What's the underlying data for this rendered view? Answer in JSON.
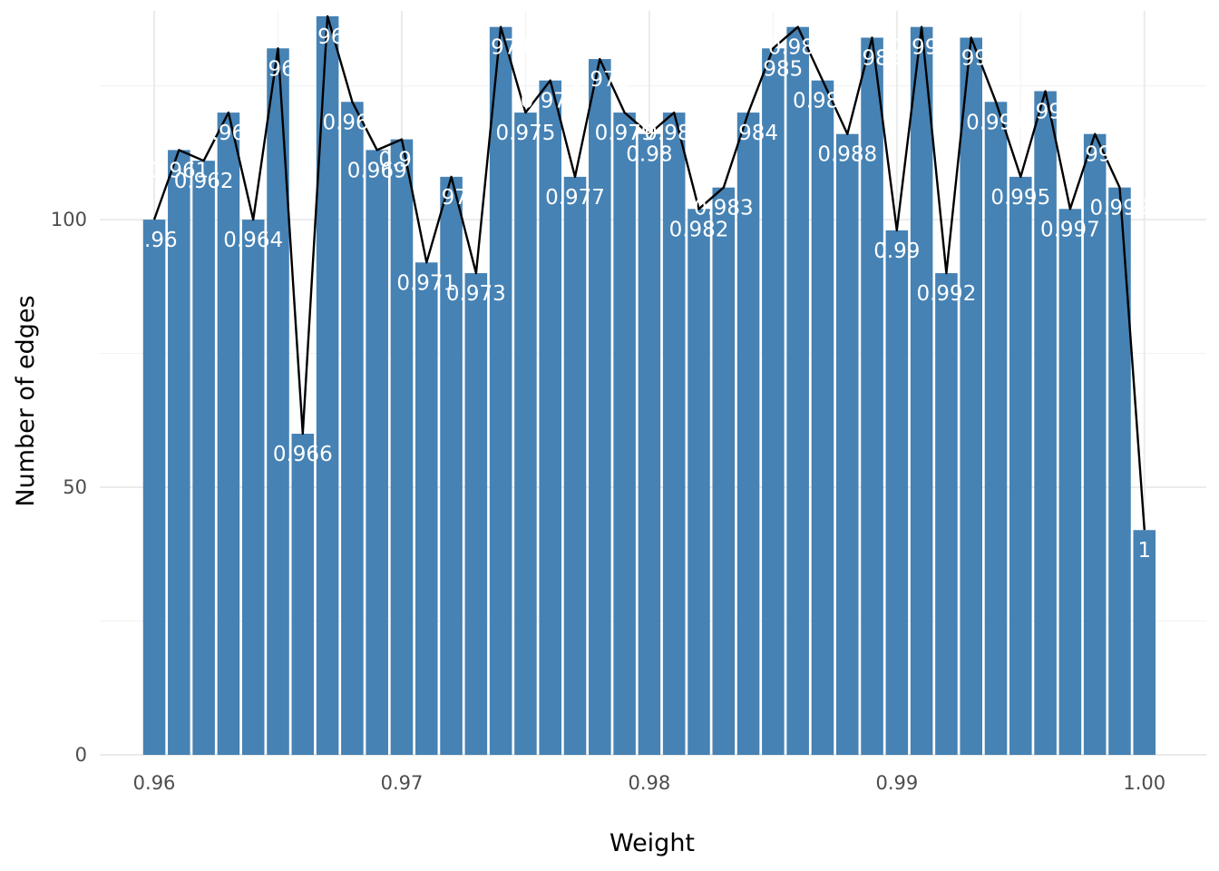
{
  "chart_data": {
    "type": "bar",
    "title": "",
    "xlabel": "Weight",
    "ylabel": "Number of edges",
    "xlim": [
      0.9578,
      1.0025
    ],
    "ylim": [
      0,
      139
    ],
    "x_ticks": [
      0.96,
      0.97,
      0.98,
      0.99,
      1.0
    ],
    "x_tick_labels": [
      "0.96",
      "0.97",
      "0.98",
      "0.99",
      "1.00"
    ],
    "y_ticks": [
      0,
      50,
      100
    ],
    "y_tick_labels": [
      "0",
      "50",
      "100"
    ],
    "x": [
      0.96,
      0.961,
      0.962,
      0.963,
      0.964,
      0.965,
      0.966,
      0.967,
      0.968,
      0.969,
      0.97,
      0.971,
      0.972,
      0.973,
      0.974,
      0.975,
      0.976,
      0.977,
      0.978,
      0.979,
      0.98,
      0.981,
      0.982,
      0.983,
      0.984,
      0.985,
      0.986,
      0.987,
      0.988,
      0.989,
      0.99,
      0.991,
      0.992,
      0.993,
      0.994,
      0.995,
      0.996,
      0.997,
      0.998,
      0.999,
      1.0
    ],
    "values": [
      100,
      113,
      111,
      120,
      100,
      132,
      60,
      138,
      122,
      113,
      115,
      92,
      108,
      90,
      136,
      120,
      126,
      108,
      130,
      120,
      116,
      120,
      102,
      106,
      120,
      132,
      136,
      126,
      116,
      134,
      98,
      136,
      90,
      134,
      122,
      108,
      124,
      102,
      116,
      106,
      42
    ],
    "bar_labels": [
      "0.96",
      "0.961",
      "0.962",
      "0.963",
      "0.964",
      "0.965",
      "0.966",
      "0.967",
      "0.968",
      "0.969",
      "0.97",
      "0.971",
      "0.972",
      "0.973",
      "0.974",
      "0.975",
      "0.976",
      "0.977",
      "0.978",
      "0.979",
      "0.98",
      "0.981",
      "0.982",
      "0.983",
      "0.984",
      "0.985",
      "0.986",
      "0.987",
      "0.988",
      "0.989",
      "0.99",
      "0.991",
      "0.992",
      "0.993",
      "0.994",
      "0.995",
      "0.996",
      "0.997",
      "0.998",
      "0.999",
      "1"
    ],
    "line": "same values connected across bar centers",
    "grid": true,
    "colors": {
      "bar": "#4682b4",
      "line": "#000000",
      "label": "#ffffff",
      "grid": "#ebebeb"
    }
  }
}
